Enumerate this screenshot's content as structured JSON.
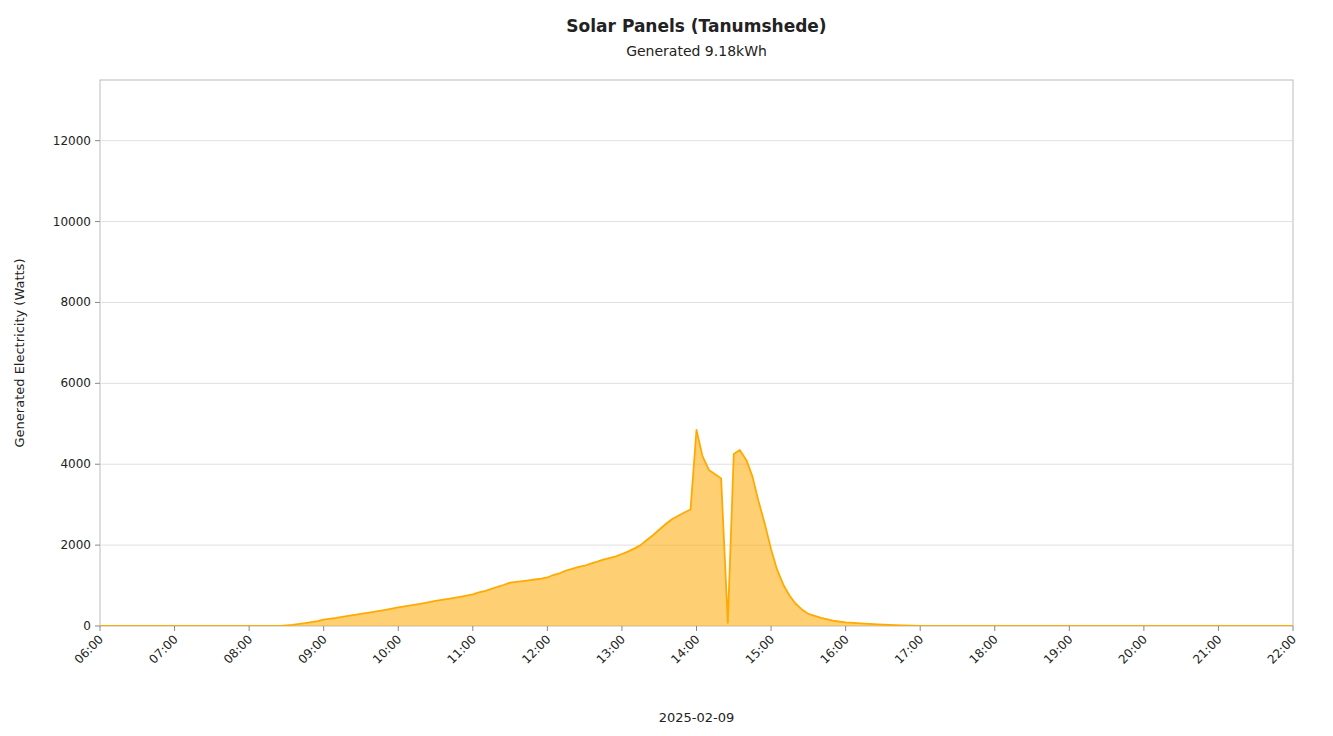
{
  "chart_data": {
    "type": "area",
    "title": "Solar Panels (Tanumshede)",
    "subtitle": "Generated 9.18kWh",
    "x_label": "2025-02-09",
    "y_label": "Generated Electricity (Watts)",
    "color": "#ffaa00",
    "grid": true,
    "xlim": [
      6.0,
      22.0
    ],
    "ylim": [
      0,
      13500
    ],
    "yticks": [
      0,
      2000,
      4000,
      6000,
      8000,
      10000,
      12000
    ],
    "xticks": [
      {
        "value": 6,
        "label": "06:00"
      },
      {
        "value": 7,
        "label": "07:00"
      },
      {
        "value": 8,
        "label": "08:00"
      },
      {
        "value": 9,
        "label": "09:00"
      },
      {
        "value": 10,
        "label": "10:00"
      },
      {
        "value": 11,
        "label": "11:00"
      },
      {
        "value": 12,
        "label": "12:00"
      },
      {
        "value": 13,
        "label": "13:00"
      },
      {
        "value": 14,
        "label": "14:00"
      },
      {
        "value": 15,
        "label": "15:00"
      },
      {
        "value": 16,
        "label": "16:00"
      },
      {
        "value": 17,
        "label": "17:00"
      },
      {
        "value": 18,
        "label": "18:00"
      },
      {
        "value": 19,
        "label": "19:00"
      },
      {
        "value": 20,
        "label": "20:00"
      },
      {
        "value": 21,
        "label": "21:00"
      },
      {
        "value": 22,
        "label": "22:00"
      }
    ],
    "x": [
      6.0,
      6.25,
      6.5,
      6.75,
      7.0,
      7.25,
      7.5,
      7.75,
      8.0,
      8.25,
      8.42,
      8.58,
      8.75,
      8.92,
      9.0,
      9.17,
      9.33,
      9.5,
      9.67,
      9.83,
      10.0,
      10.17,
      10.33,
      10.5,
      10.67,
      10.83,
      11.0,
      11.08,
      11.17,
      11.25,
      11.33,
      11.42,
      11.5,
      11.58,
      11.67,
      11.75,
      11.83,
      11.92,
      12.0,
      12.08,
      12.17,
      12.25,
      12.33,
      12.42,
      12.5,
      12.58,
      12.67,
      12.75,
      12.83,
      12.92,
      13.0,
      13.08,
      13.17,
      13.25,
      13.33,
      13.42,
      13.5,
      13.58,
      13.67,
      13.75,
      13.83,
      13.92,
      14.0,
      14.08,
      14.17,
      14.25,
      14.33,
      14.42,
      14.5,
      14.58,
      14.67,
      14.75,
      14.83,
      14.92,
      15.0,
      15.08,
      15.17,
      15.25,
      15.33,
      15.42,
      15.5,
      15.67,
      15.83,
      16.0,
      16.25,
      16.5,
      16.75,
      17.0,
      17.25,
      17.5,
      17.75,
      18.0,
      18.5,
      19.0,
      20.0,
      21.0,
      22.0
    ],
    "values": [
      0,
      0,
      0,
      0,
      0,
      0,
      0,
      0,
      0,
      0,
      5,
      30,
      70,
      120,
      160,
      200,
      250,
      300,
      350,
      400,
      460,
      510,
      560,
      620,
      670,
      720,
      780,
      830,
      870,
      920,
      970,
      1020,
      1070,
      1090,
      1110,
      1130,
      1150,
      1170,
      1200,
      1260,
      1310,
      1370,
      1410,
      1460,
      1490,
      1540,
      1590,
      1640,
      1680,
      1720,
      1780,
      1840,
      1920,
      2000,
      2120,
      2250,
      2380,
      2510,
      2640,
      2720,
      2800,
      2880,
      4850,
      4200,
      3850,
      3750,
      3650,
      80,
      4250,
      4350,
      4100,
      3700,
      3100,
      2500,
      1900,
      1400,
      1000,
      750,
      550,
      400,
      300,
      200,
      130,
      90,
      60,
      35,
      15,
      0,
      0,
      0,
      0,
      0,
      0,
      0,
      0,
      0,
      0
    ]
  }
}
